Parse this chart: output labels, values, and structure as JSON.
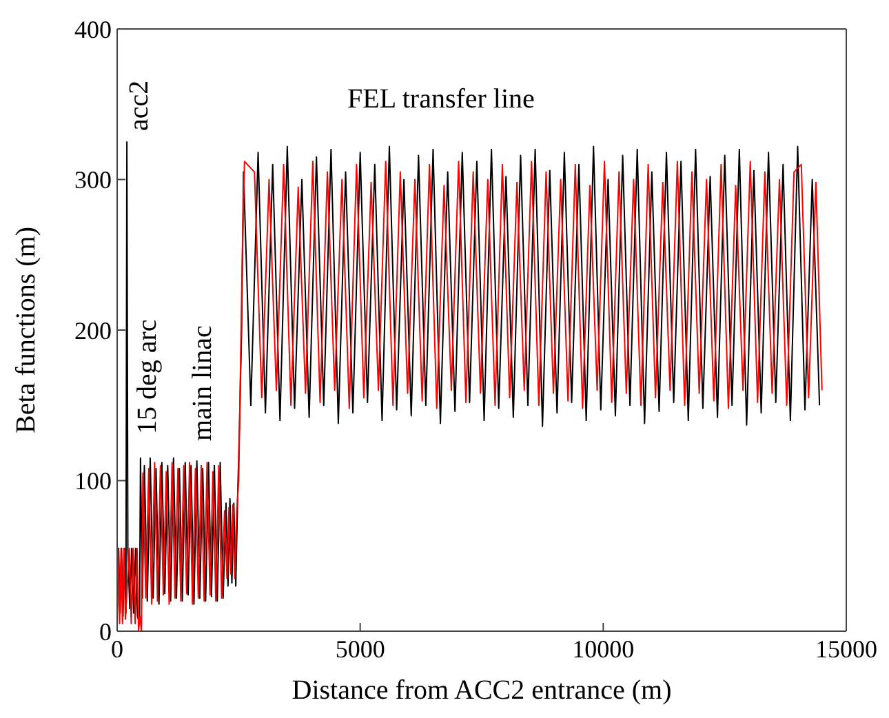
{
  "chart_data": {
    "type": "line",
    "xlabel": "Distance from ACC2 entrance (m)",
    "ylabel": "Beta functions (m)",
    "xlim": [
      0,
      15000
    ],
    "ylim": [
      0,
      400
    ],
    "xticks": [
      0,
      5000,
      10000,
      15000
    ],
    "yticks": [
      0,
      100,
      200,
      300,
      400
    ],
    "grid": false,
    "marker": "none",
    "line_style": "solid",
    "annotations": [
      "acc2",
      "15 deg arc",
      "main linac",
      "FEL transfer line"
    ],
    "series": [
      {
        "color": "#000000",
        "x": [
          0,
          30,
          60,
          90,
          120,
          150,
          180,
          200,
          220,
          260,
          300,
          340,
          380,
          420,
          460,
          480,
          520,
          560,
          620,
          680,
          740,
          800,
          860,
          920,
          980,
          1040,
          1100,
          1160,
          1220,
          1280,
          1340,
          1400,
          1460,
          1520,
          1580,
          1640,
          1700,
          1760,
          1820,
          1880,
          1940,
          2000,
          2060,
          2120,
          2180,
          2240,
          2280,
          2320,
          2360,
          2400,
          2440,
          2480,
          2520,
          2560,
          2600,
          2750,
          2900,
          3050,
          3200,
          3350,
          3500,
          3650,
          3800,
          3950,
          4100,
          4250,
          4400,
          4550,
          4700,
          4850,
          5000,
          5150,
          5300,
          5450,
          5600,
          5750,
          5900,
          6050,
          6200,
          6350,
          6500,
          6650,
          6800,
          6950,
          7100,
          7250,
          7400,
          7550,
          7700,
          7850,
          8000,
          8150,
          8300,
          8450,
          8600,
          8750,
          8900,
          9050,
          9200,
          9350,
          9500,
          9650,
          9800,
          9950,
          10100,
          10250,
          10400,
          10550,
          10700,
          10850,
          11000,
          11150,
          11300,
          11450,
          11600,
          11750,
          11900,
          12050,
          12200,
          12350,
          12500,
          12650,
          12800,
          12950,
          13100,
          13250,
          13400,
          13550,
          13700,
          13850,
          14000,
          14150,
          14300,
          14450
        ],
        "values": [
          10,
          55,
          12,
          55,
          10,
          55,
          12,
          325,
          55,
          15,
          55,
          12,
          55,
          10,
          5,
          115,
          22,
          110,
          20,
          115,
          22,
          108,
          18,
          112,
          25,
          110,
          20,
          115,
          22,
          108,
          20,
          112,
          24,
          110,
          18,
          113,
          22,
          108,
          20,
          112,
          23,
          110,
          20,
          112,
          22,
          85,
          30,
          88,
          32,
          85,
          30,
          90,
          140,
          200,
          305,
          150,
          318,
          145,
          310,
          140,
          322,
          148,
          300,
          142,
          315,
          150,
          320,
          138,
          305,
          145,
          318,
          152,
          310,
          140,
          322,
          147,
          300,
          143,
          316,
          150,
          320,
          138,
          305,
          146,
          318,
          152,
          312,
          140,
          320,
          148,
          302,
          142,
          316,
          150,
          320,
          136,
          306,
          145,
          318,
          152,
          310,
          140,
          322,
          147,
          300,
          143,
          316,
          150,
          320,
          138,
          305,
          146,
          318,
          152,
          312,
          140,
          320,
          148,
          302,
          142,
          316,
          150,
          320,
          137,
          306,
          145,
          318,
          152,
          310,
          140,
          322,
          147,
          300,
          150
        ]
      },
      {
        "color": "#ff0000",
        "x": [
          0,
          20,
          50,
          80,
          110,
          140,
          170,
          250,
          290,
          330,
          370,
          410,
          440,
          470,
          500,
          530,
          590,
          650,
          710,
          770,
          830,
          890,
          950,
          1010,
          1070,
          1130,
          1190,
          1250,
          1310,
          1370,
          1430,
          1490,
          1550,
          1610,
          1670,
          1730,
          1790,
          1850,
          1910,
          1970,
          2030,
          2090,
          2150,
          2210,
          2260,
          2300,
          2340,
          2380,
          2420,
          2460,
          2500,
          2540,
          2580,
          2620,
          2825,
          2975,
          3125,
          3275,
          3425,
          3575,
          3725,
          3875,
          4025,
          4175,
          4325,
          4475,
          4625,
          4775,
          4925,
          5075,
          5225,
          5375,
          5525,
          5675,
          5825,
          5975,
          6125,
          6275,
          6425,
          6575,
          6725,
          6875,
          7025,
          7175,
          7325,
          7475,
          7625,
          7775,
          7925,
          8075,
          8225,
          8375,
          8525,
          8675,
          8825,
          8975,
          9125,
          9275,
          9425,
          9575,
          9725,
          9875,
          10025,
          10175,
          10325,
          10475,
          10625,
          10775,
          10925,
          11075,
          11225,
          11375,
          11525,
          11675,
          11825,
          11975,
          12125,
          12275,
          12425,
          12575,
          12725,
          12875,
          13025,
          13175,
          13325,
          13475,
          13625,
          13775,
          13925,
          14075,
          14225,
          14375,
          14500
        ],
        "values": [
          5,
          55,
          5,
          55,
          5,
          55,
          8,
          55,
          5,
          55,
          5,
          55,
          0,
          10,
          0,
          105,
          22,
          108,
          18,
          112,
          20,
          110,
          24,
          106,
          18,
          112,
          22,
          108,
          20,
          110,
          25,
          112,
          18,
          108,
          22,
          110,
          20,
          112,
          24,
          106,
          20,
          110,
          22,
          80,
          35,
          82,
          38,
          84,
          35,
          80,
          100,
          180,
          260,
          312,
          305,
          155,
          300,
          160,
          310,
          150,
          295,
          158,
          312,
          152,
          305,
          160,
          300,
          148,
          310,
          155,
          298,
          160,
          312,
          150,
          305,
          158,
          300,
          153,
          310,
          148,
          296,
          160,
          312,
          152,
          305,
          158,
          300,
          150,
          310,
          155,
          298,
          160,
          312,
          150,
          305,
          158,
          300,
          153,
          310,
          148,
          296,
          160,
          312,
          152,
          305,
          158,
          300,
          150,
          310,
          155,
          298,
          160,
          312,
          150,
          305,
          158,
          300,
          153,
          310,
          148,
          296,
          160,
          312,
          152,
          305,
          158,
          300,
          150,
          305,
          310,
          155,
          298,
          160
        ]
      }
    ]
  }
}
